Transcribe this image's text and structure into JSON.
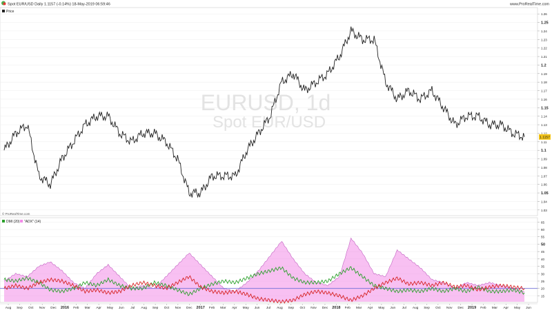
{
  "header": {
    "title": "Spot EUR/USD Daily 1.1157 (-0.14%) 18-May-2019 06:59:46",
    "brand": "www.ProRealTime.com",
    "logo_icon": "prorealtime-logo-icon"
  },
  "price_panel": {
    "legend": "Price",
    "watermark_line1": "EURUSD, 1d",
    "watermark_line2": "Spot EUR/USD",
    "last_value": "1.1157",
    "last_value_color": "#f5c518",
    "credit": "© ProRealTime.com",
    "y_ticks": [
      "1.26",
      "1.25",
      "1.24",
      "1.23",
      "1.22",
      "1.21",
      "1.2",
      "1.19",
      "1.18",
      "1.17",
      "1.16",
      "1.15",
      "1.14",
      "1.13",
      "1.12",
      "1.11",
      "1.1",
      "1.09",
      "1.08",
      "1.07",
      "1.06",
      "1.05",
      "1.04",
      "1.03"
    ],
    "y_bold_ticks": [
      "1.25",
      "1.2",
      "1.15",
      "1.1",
      "1.05"
    ]
  },
  "indicator_panel": {
    "legend_dmi": "DMI (20)",
    "legend_adx": "\"ADX\" (14)",
    "y_ticks": [
      "65",
      "60",
      "55",
      "50",
      "45",
      "40",
      "35",
      "30",
      "25",
      "20",
      "15"
    ],
    "y_bold_ticks": [
      "50"
    ],
    "colors": {
      "di_plus": "#2aa02a",
      "di_minus": "#d62222",
      "adx_fill": "#f28ce8",
      "baseline": "#6b6bd6"
    }
  },
  "x_axis": {
    "labels": [
      "Aug",
      "Sep",
      "Oct",
      "Nov",
      "Dec",
      "2016",
      "Feb",
      "Mar",
      "Apr",
      "May",
      "Jun",
      "Jul",
      "Aug",
      "Sep",
      "Oct",
      "Nov",
      "Dec",
      "2017",
      "Feb",
      "Mar",
      "Apr",
      "May",
      "Jun",
      "Jul",
      "Aug",
      "Sep",
      "Oct",
      "Nov",
      "Dec",
      "2018",
      "Feb",
      "Mar",
      "Apr",
      "May",
      "Jun",
      "Jul",
      "Aug",
      "Sep",
      "Oct",
      "Nov",
      "Dec",
      "2019",
      "Feb",
      "Mar",
      "Apr",
      "May",
      "Jun"
    ],
    "bold_labels": [
      "2016",
      "2017",
      "2018",
      "2019"
    ]
  },
  "chart_data": [
    {
      "type": "line",
      "title": "Spot EUR/USD Daily",
      "series_name": "Price",
      "x": [
        "2015-08",
        "2015-09",
        "2015-10",
        "2015-11",
        "2015-12",
        "2016-01",
        "2016-02",
        "2016-03",
        "2016-04",
        "2016-05",
        "2016-06",
        "2016-07",
        "2016-08",
        "2016-09",
        "2016-10",
        "2016-11",
        "2016-12",
        "2017-01",
        "2017-02",
        "2017-03",
        "2017-04",
        "2017-05",
        "2017-06",
        "2017-07",
        "2017-08",
        "2017-09",
        "2017-10",
        "2017-11",
        "2017-12",
        "2018-01",
        "2018-02",
        "2018-03",
        "2018-04",
        "2018-05",
        "2018-06",
        "2018-07",
        "2018-08",
        "2018-09",
        "2018-10",
        "2018-11",
        "2018-12",
        "2019-01",
        "2019-02",
        "2019-03",
        "2019-04",
        "2019-05"
      ],
      "values": [
        1.1,
        1.12,
        1.13,
        1.07,
        1.06,
        1.09,
        1.11,
        1.13,
        1.14,
        1.14,
        1.12,
        1.11,
        1.12,
        1.12,
        1.11,
        1.09,
        1.05,
        1.05,
        1.07,
        1.07,
        1.07,
        1.1,
        1.12,
        1.14,
        1.18,
        1.19,
        1.17,
        1.18,
        1.19,
        1.21,
        1.24,
        1.23,
        1.23,
        1.18,
        1.16,
        1.17,
        1.16,
        1.17,
        1.15,
        1.13,
        1.14,
        1.14,
        1.13,
        1.13,
        1.12,
        1.1157
      ],
      "ylim": [
        1.025,
        1.265
      ]
    },
    {
      "type": "line",
      "title": "DMI (20) / \"ADX\" (14)",
      "x": [
        "2015-08",
        "2015-09",
        "2015-10",
        "2015-11",
        "2015-12",
        "2016-01",
        "2016-02",
        "2016-03",
        "2016-04",
        "2016-05",
        "2016-06",
        "2016-07",
        "2016-08",
        "2016-09",
        "2016-10",
        "2016-11",
        "2016-12",
        "2017-01",
        "2017-02",
        "2017-03",
        "2017-04",
        "2017-05",
        "2017-06",
        "2017-07",
        "2017-08",
        "2017-09",
        "2017-10",
        "2017-11",
        "2017-12",
        "2018-01",
        "2018-02",
        "2018-03",
        "2018-04",
        "2018-05",
        "2018-06",
        "2018-07",
        "2018-08",
        "2018-09",
        "2018-10",
        "2018-11",
        "2018-12",
        "2019-01",
        "2019-02",
        "2019-03",
        "2019-04",
        "2019-05"
      ],
      "series": [
        {
          "name": "DMI+",
          "values": [
            26,
            25,
            27,
            24,
            19,
            18,
            20,
            24,
            22,
            26,
            22,
            20,
            20,
            24,
            22,
            19,
            16,
            20,
            23,
            25,
            24,
            27,
            30,
            32,
            34,
            27,
            24,
            24,
            25,
            30,
            34,
            28,
            22,
            20,
            18,
            19,
            18,
            20,
            18,
            20,
            18,
            21,
            18,
            18,
            19,
            17
          ]
        },
        {
          "name": "DMI-",
          "values": [
            20,
            22,
            20,
            24,
            26,
            25,
            22,
            18,
            19,
            17,
            18,
            22,
            24,
            22,
            20,
            24,
            28,
            21,
            18,
            17,
            18,
            16,
            13,
            12,
            11,
            12,
            16,
            18,
            17,
            15,
            12,
            15,
            20,
            24,
            27,
            23,
            24,
            22,
            24,
            21,
            22,
            19,
            21,
            22,
            21,
            20
          ]
        },
        {
          "name": "ADX",
          "values": [
            25,
            30,
            28,
            35,
            38,
            32,
            24,
            20,
            30,
            36,
            28,
            20,
            22,
            20,
            28,
            36,
            44,
            36,
            28,
            20,
            18,
            24,
            32,
            42,
            52,
            40,
            30,
            24,
            22,
            28,
            54,
            44,
            30,
            28,
            46,
            40,
            34,
            26,
            24,
            20,
            24,
            22,
            24,
            22,
            20,
            18
          ]
        }
      ],
      "baseline": 20,
      "ylim": [
        11,
        67
      ]
    }
  ]
}
